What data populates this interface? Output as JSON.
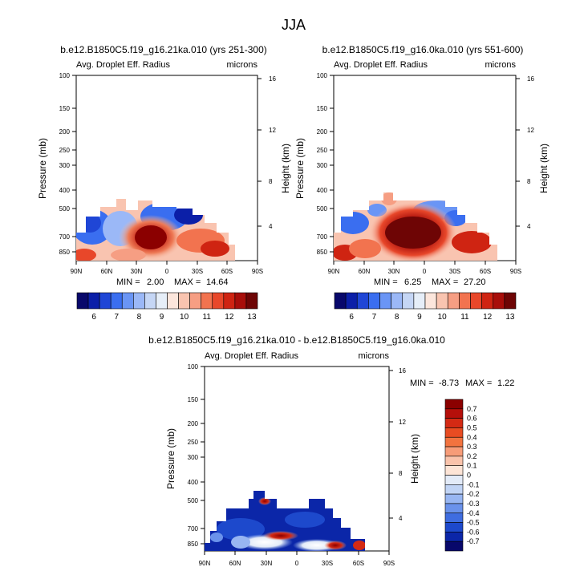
{
  "figure": {
    "title": "JJA"
  },
  "chart_data": [
    {
      "type": "heatmap",
      "id": "panel1",
      "title": "b.e12.B1850C5.f19_g16.21ka.010 (yrs 251-300)",
      "left_label": "Avg. Droplet Eff. Radius",
      "right_label": "microns",
      "ylabel": "Pressure (mb)",
      "ylabel_right": "Height (km)",
      "x_ticks": [
        "90N",
        "60N",
        "30N",
        "0",
        "30S",
        "60S",
        "90S"
      ],
      "y_ticks": [
        "100",
        "150",
        "200",
        "250",
        "300",
        "400",
        "500",
        "700",
        "850"
      ],
      "y_right_ticks": [
        "16",
        "12",
        "8",
        "4"
      ],
      "min_label": "MIN =",
      "min_value": "2.00",
      "max_label": "MAX =",
      "max_value": "14.64",
      "ylim": [
        1000,
        100
      ],
      "xlim": [
        90,
        -90
      ]
    },
    {
      "type": "heatmap",
      "id": "panel2",
      "title": "b.e12.B1850C5.f19_g16.0ka.010 (yrs 551-600)",
      "left_label": "Avg. Droplet Eff. Radius",
      "right_label": "microns",
      "ylabel": "Pressure (mb)",
      "ylabel_right": "Height (km)",
      "x_ticks": [
        "90N",
        "60N",
        "30N",
        "0",
        "30S",
        "60S",
        "90S"
      ],
      "y_ticks": [
        "100",
        "150",
        "200",
        "250",
        "300",
        "400",
        "500",
        "700",
        "850"
      ],
      "y_right_ticks": [
        "16",
        "12",
        "8",
        "4"
      ],
      "min_label": "MIN =",
      "min_value": "6.25",
      "max_label": "MAX =",
      "max_value": "27.20",
      "ylim": [
        1000,
        100
      ],
      "xlim": [
        90,
        -90
      ]
    },
    {
      "type": "heatmap",
      "id": "panel3",
      "title": "b.e12.B1850C5.f19_g16.21ka.010 - b.e12.B1850C5.f19_g16.0ka.010",
      "left_label": "Avg. Droplet Eff. Radius",
      "right_label": "microns",
      "ylabel": "Pressure (mb)",
      "ylabel_right": "Height (km)",
      "x_ticks": [
        "90N",
        "60N",
        "30N",
        "0",
        "30S",
        "60S",
        "90S"
      ],
      "y_ticks": [
        "100",
        "150",
        "200",
        "250",
        "300",
        "400",
        "500",
        "700",
        "850"
      ],
      "y_right_ticks": [
        "16",
        "12",
        "8",
        "4"
      ],
      "min_label": "MIN =",
      "min_value": "-8.73",
      "max_label": "MAX =",
      "max_value": "1.22",
      "ylim": [
        1000,
        100
      ],
      "xlim": [
        90,
        -90
      ]
    }
  ],
  "colorbar_abs": {
    "labels": [
      "6",
      "7",
      "8",
      "9",
      "10",
      "11",
      "12",
      "13"
    ],
    "colors": [
      "#08086b",
      "#0b1fa8",
      "#1f46d6",
      "#3a6ef0",
      "#6a95f5",
      "#9bb8f7",
      "#c5d6f5",
      "#e6eef8",
      "#fce6dc",
      "#f9c4b0",
      "#f69e83",
      "#f2734f",
      "#e8472a",
      "#cf2412",
      "#a80e0a",
      "#6e0505"
    ]
  },
  "colorbar_diff": {
    "labels": [
      "0.7",
      "0.6",
      "0.5",
      "0.4",
      "0.3",
      "0.2",
      "0.1",
      "0",
      "-0.1",
      "-0.2",
      "-0.3",
      "-0.4",
      "-0.5",
      "-0.6",
      "-0.7"
    ],
    "colors": [
      "#8b0000",
      "#b50f0a",
      "#d42a14",
      "#e84c22",
      "#f2733f",
      "#f79c78",
      "#fac3ab",
      "#fde4d6",
      "#e3ebf8",
      "#c1d4f5",
      "#98b6f2",
      "#6a92eb",
      "#3f6de0",
      "#1d49cc",
      "#0b26a8",
      "#08086b"
    ]
  }
}
